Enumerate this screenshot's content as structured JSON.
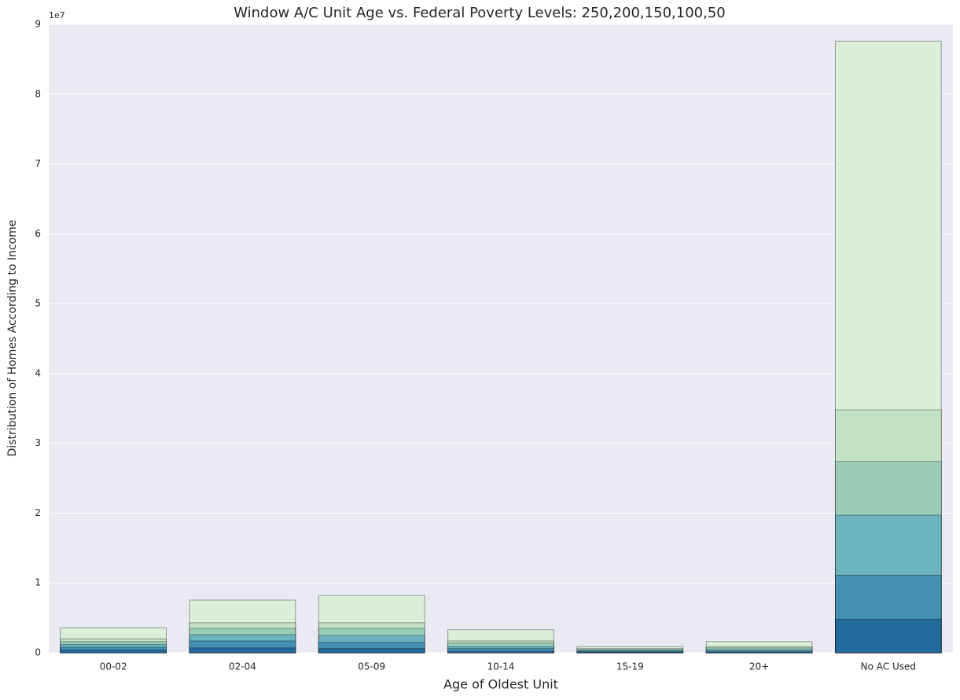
{
  "chart_data": {
    "type": "bar",
    "overlap": true,
    "title": "Window A/C Unit Age vs. Federal Poverty Levels: 250,200,150,100,50",
    "x_label": "Age of Oldest Unit",
    "y_label": "Distribution of Homes According to Income",
    "y_offset_label": "1e7",
    "categories": [
      "00-02",
      "02-04",
      "05-09",
      "10-14",
      "15-19",
      "20+",
      "No AC Used"
    ],
    "series": [
      {
        "color": "#ddeedb",
        "values": [
          3600000,
          7550000,
          8200000,
          3300000,
          900000,
          1600000,
          87600000
        ]
      },
      {
        "color": "#c3e1c4",
        "values": [
          2000000,
          4300000,
          4300000,
          1700000,
          600000,
          900000,
          34800000
        ]
      },
      {
        "color": "#9ccdb9",
        "values": [
          1600000,
          3500000,
          3500000,
          1400000,
          450000,
          700000,
          27400000
        ]
      },
      {
        "color": "#6bb3bd",
        "values": [
          1200000,
          2600000,
          2500000,
          900000,
          350000,
          450000,
          19700000
        ]
      },
      {
        "color": "#4491b3",
        "values": [
          800000,
          1700000,
          1500000,
          600000,
          200000,
          250000,
          11100000
        ]
      },
      {
        "color": "#226a9c",
        "values": [
          400000,
          700000,
          600000,
          200000,
          100000,
          100000,
          4800000
        ]
      }
    ],
    "ylim": [
      0,
      90000000
    ],
    "yticks": [
      0,
      {
        "value": 10000000,
        "label": "1"
      },
      {
        "value": 20000000,
        "label": "2"
      },
      {
        "value": 30000000,
        "label": "3"
      },
      {
        "value": 40000000,
        "label": "4"
      },
      {
        "value": 50000000,
        "label": "5"
      },
      {
        "value": 60000000,
        "label": "6"
      },
      {
        "value": 70000000,
        "label": "7"
      },
      {
        "value": 80000000,
        "label": "8"
      },
      {
        "value": 90000000,
        "label": "9"
      }
    ],
    "grid": true
  }
}
